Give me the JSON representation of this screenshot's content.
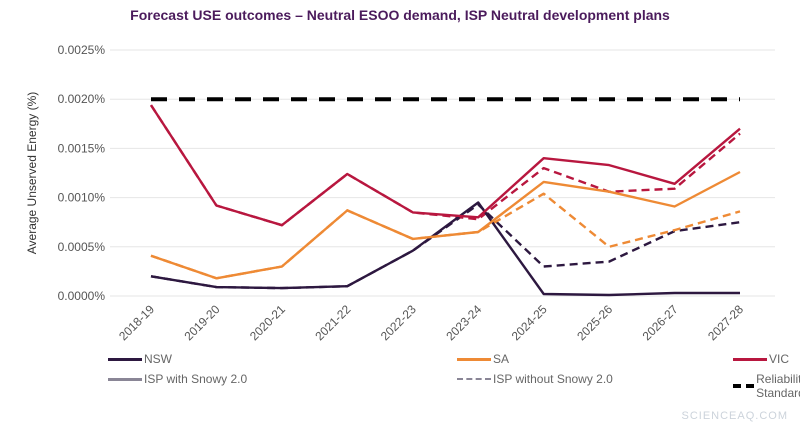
{
  "chart_data": {
    "type": "line",
    "title": "Forecast USE outcomes – Neutral ESOO demand, ISP Neutral development plans",
    "xlabel": "",
    "ylabel": "Average Unserved Energy (%)",
    "ylim": [
      0,
      0.0025
    ],
    "yticks": [
      "0.0000%",
      "0.0005%",
      "0.0010%",
      "0.0015%",
      "0.0020%",
      "0.0025%"
    ],
    "grid": true,
    "legend_placement": "bottom",
    "categories": [
      "2018-19",
      "2019-20",
      "2020-21",
      "2021-22",
      "2022-23",
      "2023-24",
      "2024-25",
      "2025-26",
      "2026-27",
      "2027-28"
    ],
    "series": [
      {
        "name": "NSW",
        "scenario": "ISP with Snowy 2.0",
        "color": "#2d1840",
        "style": "solid",
        "values": [
          0.0002,
          9e-05,
          8e-05,
          0.0001,
          0.00046,
          0.00095,
          2e-05,
          1e-05,
          3e-05,
          3e-05
        ]
      },
      {
        "name": "NSW",
        "scenario": "ISP without Snowy 2.0",
        "color": "#2d1840",
        "style": "dashed",
        "values": [
          0.0002,
          9e-05,
          8e-05,
          0.0001,
          0.00046,
          0.00093,
          0.0003,
          0.00035,
          0.00066,
          0.00075
        ]
      },
      {
        "name": "SA",
        "scenario": "ISP with Snowy 2.0",
        "color": "#ee8a35",
        "style": "solid",
        "values": [
          0.00041,
          0.00018,
          0.0003,
          0.00087,
          0.00058,
          0.00065,
          0.00116,
          0.00106,
          0.00091,
          0.00126
        ]
      },
      {
        "name": "SA",
        "scenario": "ISP without Snowy 2.0",
        "color": "#ee8a35",
        "style": "dashed",
        "values": [
          0.00041,
          0.00018,
          0.0003,
          0.00087,
          0.00058,
          0.00065,
          0.00104,
          0.0005,
          0.00067,
          0.00086
        ]
      },
      {
        "name": "VIC",
        "scenario": "ISP with Snowy 2.0",
        "color": "#b8173f",
        "style": "solid",
        "values": [
          0.00194,
          0.00092,
          0.00072,
          0.00124,
          0.00085,
          0.0008,
          0.0014,
          0.00133,
          0.00114,
          0.0017
        ]
      },
      {
        "name": "VIC",
        "scenario": "ISP without Snowy 2.0",
        "color": "#b8173f",
        "style": "dashed",
        "values": [
          0.00194,
          0.00092,
          0.00072,
          0.00124,
          0.00085,
          0.00078,
          0.0013,
          0.00106,
          0.00109,
          0.00165
        ]
      },
      {
        "name": "Reliability Standard",
        "color": "#000000",
        "style": "dashed-thick",
        "values": [
          0.002,
          0.002,
          0.002,
          0.002,
          0.002,
          0.002,
          0.002,
          0.002,
          0.002,
          0.002
        ]
      }
    ],
    "legend": [
      {
        "label": "NSW",
        "color": "#2d1840",
        "style": "solid"
      },
      {
        "label": "SA",
        "color": "#ee8a35",
        "style": "solid"
      },
      {
        "label": "VIC",
        "color": "#b8173f",
        "style": "solid"
      },
      {
        "label": "ISP with Snowy 2.0",
        "color": "#8a8696",
        "style": "solid"
      },
      {
        "label": "ISP without Snowy 2.0",
        "color": "#8a8696",
        "style": "dashed"
      },
      {
        "label": "Reliability Standard",
        "color": "#000000",
        "style": "dashed-thick"
      }
    ]
  },
  "watermark": "SCIENCEAQ.COM"
}
